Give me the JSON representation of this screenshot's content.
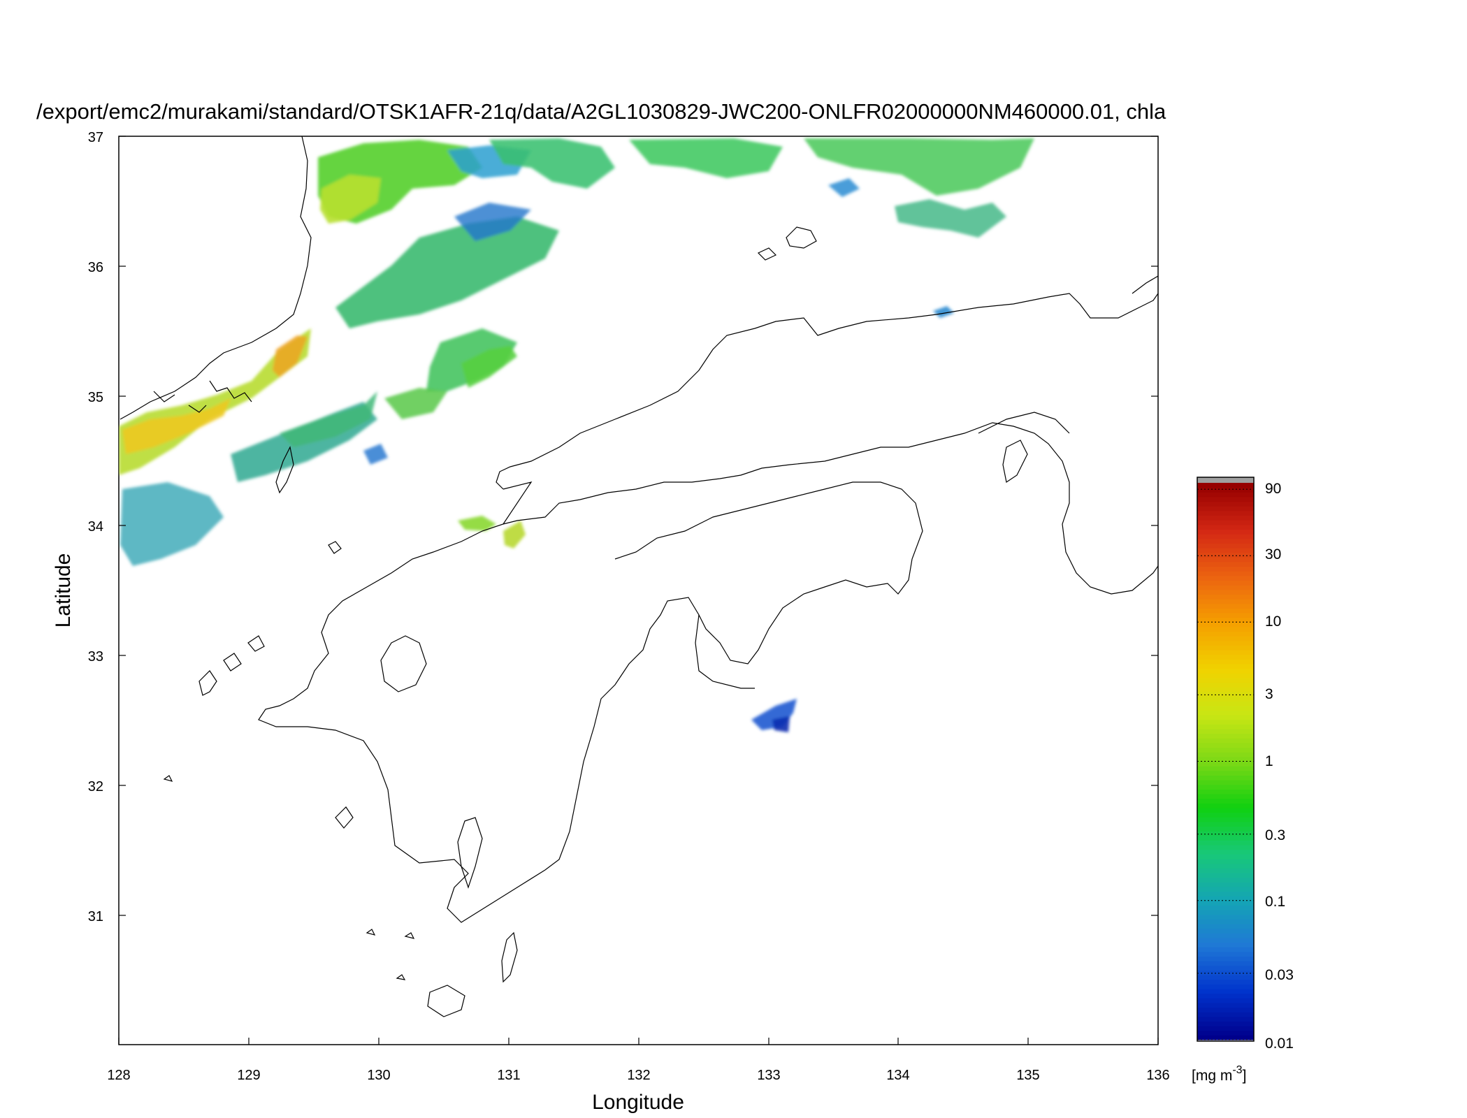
{
  "figure": {
    "title": "/export/emc2/murakami/standard/OTSK1AFR-21q/data/A2GL1030829-JWC200-ONLFR02000000NM460000.01, chla"
  },
  "map": {
    "xlabel": "Longitude",
    "ylabel": "Latitude",
    "x_ticks": [
      "128",
      "129",
      "130",
      "131",
      "132",
      "133",
      "134",
      "135",
      "136"
    ],
    "y_ticks": [
      "37",
      "36",
      "35",
      "34",
      "33",
      "32",
      "31"
    ],
    "xlim": [
      128,
      136
    ],
    "ylim": [
      30,
      37
    ],
    "coastline_color": "#000000"
  },
  "colorbar": {
    "unit_label": "[mg m",
    "unit_exponent": "-3",
    "unit_close": "]",
    "ticks": [
      "90",
      "30",
      "10",
      "3",
      "1",
      "0.3",
      "0.1",
      "0.03",
      "0.01"
    ],
    "tick_values": [
      90,
      30,
      10,
      3,
      1,
      0.3,
      0.1,
      0.03,
      0.01
    ],
    "scale": "log",
    "range": [
      0.01,
      100
    ],
    "colors": [
      "#00008c",
      "#0033cc",
      "#1f78d6",
      "#14a5b4",
      "#18c878",
      "#10d010",
      "#7cd816",
      "#c8e614",
      "#f0d200",
      "#f5a000",
      "#ec6410",
      "#d42814",
      "#960000"
    ],
    "over_color": "#a0a0a0"
  },
  "chart_data": {
    "type": "heatmap",
    "title": "/export/emc2/murakami/standard/OTSK1AFR-21q/data/A2GL1030829-JWC200-ONLFR02000000NM460000.01, chla",
    "xlabel": "Longitude",
    "ylabel": "Latitude",
    "xlim": [
      128,
      136
    ],
    "ylim": [
      30,
      37
    ],
    "colorbar_unit": "[mg m-3]",
    "colorbar_scale": "log",
    "colorbar_range": [
      0.01,
      100
    ],
    "regions": [
      {
        "lon": [
          129.5,
          131.0
        ],
        "lat": [
          35.8,
          37.0
        ],
        "chla_range": [
          0.1,
          2
        ]
      },
      {
        "lon": [
          131.0,
          132.3
        ],
        "lat": [
          35.9,
          37.0
        ],
        "chla_range": [
          0.1,
          1
        ]
      },
      {
        "lon": [
          132.3,
          135.0
        ],
        "lat": [
          36.6,
          37.0
        ],
        "chla_range": [
          0.1,
          1
        ]
      },
      {
        "lon": [
          128.0,
          129.8
        ],
        "lat": [
          34.2,
          35.5
        ],
        "chla_range": [
          0.3,
          5
        ]
      },
      {
        "lon": [
          128.5,
          131.0
        ],
        "lat": [
          34.3,
          35.2
        ],
        "chla_range": [
          0.1,
          1
        ]
      },
      {
        "lon": [
          130.7,
          131.1
        ],
        "lat": [
          33.9,
          34.1
        ],
        "chla_range": [
          1,
          3
        ]
      },
      {
        "lon": [
          132.9,
          133.3
        ],
        "lat": [
          32.4,
          32.8
        ],
        "chla_range": [
          0.03,
          0.2
        ]
      },
      {
        "lon": [
          134.2,
          134.5
        ],
        "lat": [
          35.6,
          35.7
        ],
        "chla_range": [
          0.1,
          0.3
        ]
      }
    ]
  }
}
